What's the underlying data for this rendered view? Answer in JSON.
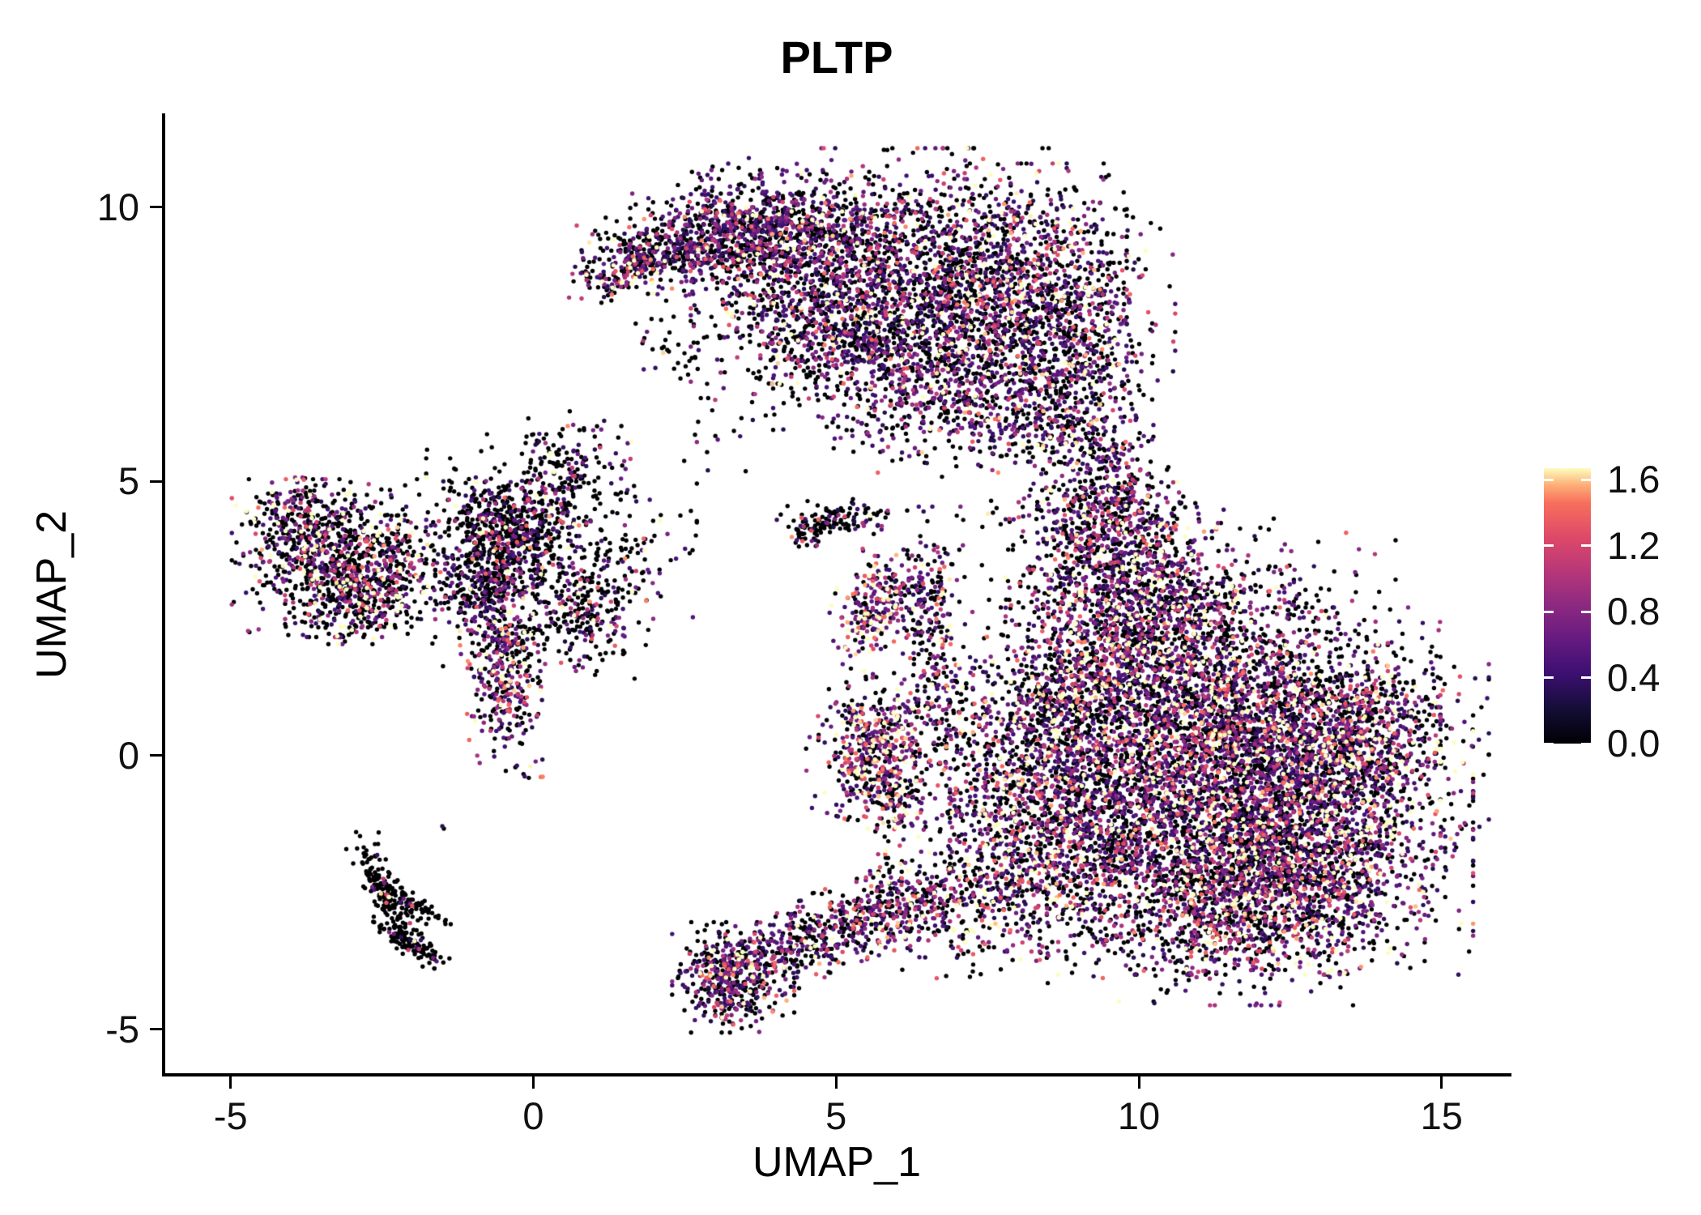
{
  "title": "PLTP",
  "axes": {
    "x": {
      "label": "UMAP_1",
      "ticks": [
        -5,
        0,
        5,
        10,
        15
      ]
    },
    "y": {
      "label": "UMAP_2",
      "ticks": [
        10,
        5,
        0,
        -5
      ]
    }
  },
  "legend": {
    "ticks": [
      "1.6",
      "1.2",
      "0.8",
      "0.4",
      "0.0"
    ],
    "min": 0.0,
    "max": 1.6
  },
  "chart_data": {
    "type": "scatter",
    "title": "PLTP",
    "xlabel": "UMAP_1",
    "ylabel": "UMAP_2",
    "xlim": [
      -6.08,
      16.1
    ],
    "ylim": [
      -5.8,
      11.67
    ],
    "grid": false,
    "legend_position": "right",
    "color_scale": {
      "name": "magma",
      "domain": [
        0.0,
        1.6
      ],
      "stops": [
        [
          0.0,
          "#000004"
        ],
        [
          0.125,
          "#140e36"
        ],
        [
          0.25,
          "#3b0f70"
        ],
        [
          0.375,
          "#641a80"
        ],
        [
          0.5,
          "#8c2981"
        ],
        [
          0.625,
          "#b73779"
        ],
        [
          0.75,
          "#de4968"
        ],
        [
          0.875,
          "#f7705c"
        ],
        [
          0.94,
          "#feb078"
        ],
        [
          1.0,
          "#fcfdbf"
        ]
      ]
    },
    "seed": 7,
    "point_radius": 2.7,
    "n_points_approx": 22400,
    "clusters": [
      {
        "name": "top-crescent",
        "expr": {
          "p0": 0.48,
          "base": 0.25,
          "mean": 0.5
        },
        "blobs": [
          {
            "cx": 1.55,
            "cy": 8.85,
            "rx": 0.45,
            "ry": 0.18,
            "rot": 25,
            "n": 160
          },
          {
            "cx": 2.6,
            "cy": 9.35,
            "rx": 0.75,
            "ry": 0.35,
            "rot": 10,
            "n": 450
          },
          {
            "cx": 4.0,
            "cy": 9.6,
            "rx": 1.0,
            "ry": 0.45,
            "rot": 0,
            "n": 800
          },
          {
            "cx": 4.4,
            "cy": 8.1,
            "rx": 0.9,
            "ry": 0.55,
            "rot": 0,
            "n": 300
          },
          {
            "cx": 6.2,
            "cy": 8.8,
            "rx": 1.5,
            "ry": 0.95,
            "rot": 0,
            "n": 1700
          },
          {
            "cx": 8.2,
            "cy": 8.4,
            "rx": 1.0,
            "ry": 1.0,
            "rot": 0,
            "n": 900
          },
          {
            "cx": 6.6,
            "cy": 6.9,
            "rx": 1.1,
            "ry": 0.6,
            "rot": 0,
            "n": 600
          },
          {
            "cx": 8.9,
            "cy": 6.9,
            "rx": 0.55,
            "ry": 0.95,
            "rot": 0,
            "n": 380
          },
          {
            "cx": 7.6,
            "cy": 6.0,
            "rx": 1.1,
            "ry": 0.35,
            "rot": 0,
            "n": 180
          },
          {
            "cx": 5.2,
            "cy": 7.6,
            "rx": 0.7,
            "ry": 0.5,
            "rot": 0,
            "n": 200
          }
        ]
      },
      {
        "name": "right-connector",
        "expr": {
          "p0": 0.5,
          "base": 0.25,
          "mean": 0.5
        },
        "blobs": [
          {
            "cx": 9.35,
            "cy": 5.0,
            "rx": 0.4,
            "ry": 0.85,
            "rot": 0,
            "n": 260
          },
          {
            "cx": 9.0,
            "cy": 4.2,
            "rx": 0.6,
            "ry": 0.5,
            "rot": 0,
            "n": 120
          }
        ]
      },
      {
        "name": "right-main",
        "expr": {
          "p0": 0.45,
          "base": 0.25,
          "mean": 0.6
        },
        "blobs": [
          {
            "cx": 9.6,
            "cy": 3.2,
            "rx": 0.75,
            "ry": 0.9,
            "rot": 0,
            "n": 700
          },
          {
            "cx": 10.4,
            "cy": 2.2,
            "rx": 0.9,
            "ry": 0.85,
            "rot": 0,
            "n": 800
          },
          {
            "cx": 11.6,
            "cy": 2.4,
            "rx": 1.1,
            "ry": 0.8,
            "rot": 0,
            "n": 300
          },
          {
            "cx": 10.9,
            "cy": 0.3,
            "rx": 1.7,
            "ry": 1.0,
            "rot": 0,
            "n": 2300
          },
          {
            "cx": 12.9,
            "cy": 0.4,
            "rx": 1.2,
            "ry": 0.85,
            "rot": 0,
            "n": 1000
          },
          {
            "cx": 11.2,
            "cy": -1.6,
            "rx": 1.8,
            "ry": 1.0,
            "rot": 0,
            "n": 2300
          },
          {
            "cx": 12.9,
            "cy": -1.6,
            "rx": 0.9,
            "ry": 0.8,
            "rot": 0,
            "n": 700
          },
          {
            "cx": 11.6,
            "cy": -3.0,
            "rx": 1.3,
            "ry": 0.65,
            "rot": 0,
            "n": 800
          },
          {
            "cx": 8.7,
            "cy": 0.9,
            "rx": 0.6,
            "ry": 0.9,
            "rot": 0,
            "n": 450
          },
          {
            "cx": 8.6,
            "cy": -1.3,
            "rx": 0.85,
            "ry": 0.95,
            "rot": 0,
            "n": 600
          },
          {
            "cx": 7.4,
            "cy": -2.5,
            "rx": 0.85,
            "ry": 0.6,
            "rot": 15,
            "n": 380
          },
          {
            "cx": 7.4,
            "cy": 0.2,
            "rx": 0.7,
            "ry": 1.1,
            "rot": 0,
            "n": 220
          },
          {
            "cx": 9.9,
            "cy": 4.35,
            "rx": 0.5,
            "ry": 0.45,
            "rot": 0,
            "n": 150
          },
          {
            "cx": 14.0,
            "cy": 0.5,
            "rx": 0.45,
            "ry": 0.55,
            "rot": 0,
            "n": 200
          }
        ]
      },
      {
        "name": "thin-streaks",
        "expr": {
          "p0": 0.5,
          "base": 0.25,
          "mean": 0.55
        },
        "blobs": [
          {
            "cx": 6.6,
            "cy": 1.9,
            "rx": 0.22,
            "ry": 1.1,
            "rot": 0,
            "n": 230
          },
          {
            "cx": 6.15,
            "cy": 2.9,
            "rx": 0.3,
            "ry": 0.35,
            "rot": 0,
            "n": 90
          }
        ]
      },
      {
        "name": "mid-small",
        "expr": {
          "p0": 0.3,
          "base": 0.3,
          "mean": 0.65
        },
        "blobs": [
          {
            "cx": 5.6,
            "cy": 2.65,
            "rx": 0.28,
            "ry": 0.5,
            "rot": -15,
            "n": 200
          }
        ]
      },
      {
        "name": "mid-tiny",
        "expr": {
          "p0": 0.75,
          "base": 0.25,
          "mean": 0.5
        },
        "blobs": [
          {
            "cx": 5.1,
            "cy": 4.35,
            "rx": 0.45,
            "ry": 0.16,
            "rot": 5,
            "n": 110
          },
          {
            "cx": 4.45,
            "cy": 4.05,
            "rx": 0.18,
            "ry": 0.12,
            "rot": 0,
            "n": 35
          }
        ]
      },
      {
        "name": "mid-blob",
        "expr": {
          "p0": 0.35,
          "base": 0.3,
          "mean": 0.65
        },
        "blobs": [
          {
            "cx": 5.55,
            "cy": 0.1,
            "rx": 0.42,
            "ry": 0.55,
            "rot": -20,
            "n": 480
          },
          {
            "cx": 5.95,
            "cy": -0.9,
            "rx": 0.25,
            "ry": 0.45,
            "rot": 0,
            "n": 110
          }
        ]
      },
      {
        "name": "bottom-mid",
        "expr": {
          "p0": 0.45,
          "base": 0.25,
          "mean": 0.55
        },
        "blobs": [
          {
            "cx": 3.3,
            "cy": -4.05,
            "rx": 0.42,
            "ry": 0.42,
            "rot": 0,
            "n": 450
          },
          {
            "cx": 4.5,
            "cy": -3.4,
            "rx": 0.9,
            "ry": 0.3,
            "rot": 25,
            "n": 350
          },
          {
            "cx": 5.8,
            "cy": -2.85,
            "rx": 0.7,
            "ry": 0.3,
            "rot": 20,
            "n": 250
          }
        ]
      },
      {
        "name": "center-left",
        "expr": {
          "p0": 0.68,
          "base": 0.25,
          "mean": 0.5
        },
        "blobs": [
          {
            "cx": -0.45,
            "cy": 4.1,
            "rx": 0.55,
            "ry": 0.55,
            "rot": 0,
            "n": 550
          },
          {
            "cx": 0.3,
            "cy": 3.7,
            "rx": 1.0,
            "ry": 0.9,
            "rot": 0,
            "n": 450
          },
          {
            "cx": 0.9,
            "cy": 2.6,
            "rx": 0.45,
            "ry": 0.5,
            "rot": 0,
            "n": 200
          },
          {
            "cx": 0.5,
            "cy": 5.2,
            "rx": 0.5,
            "ry": 0.45,
            "rot": 0,
            "n": 130
          },
          {
            "cx": -0.9,
            "cy": 3.0,
            "rx": 0.35,
            "ry": 0.4,
            "rot": 0,
            "n": 150
          }
        ]
      },
      {
        "name": "center-left-arm",
        "expr": {
          "p0": 0.4,
          "base": 0.28,
          "mean": 0.6
        },
        "blobs": [
          {
            "cx": -0.5,
            "cy": 1.6,
            "rx": 0.28,
            "ry": 0.85,
            "rot": 5,
            "n": 400
          }
        ]
      },
      {
        "name": "left",
        "expr": {
          "p0": 0.58,
          "base": 0.3,
          "mean": 0.7
        },
        "blobs": [
          {
            "cx": -3.3,
            "cy": 3.6,
            "rx": 0.7,
            "ry": 0.6,
            "rot": 0,
            "n": 750
          },
          {
            "cx": -3.9,
            "cy": 4.35,
            "rx": 0.35,
            "ry": 0.3,
            "rot": 0,
            "n": 160
          },
          {
            "cx": -2.9,
            "cy": 2.75,
            "rx": 0.5,
            "ry": 0.3,
            "rot": 0,
            "n": 180
          },
          {
            "cx": -2.45,
            "cy": 3.3,
            "rx": 0.3,
            "ry": 0.45,
            "rot": 0,
            "n": 120
          }
        ]
      },
      {
        "name": "v-shape",
        "expr": {
          "p0": 0.93,
          "base": 0.25,
          "mean": 0.5
        },
        "blobs": [
          {
            "cx": -2.45,
            "cy": -2.5,
            "rx": 0.13,
            "ry": 0.5,
            "rot": 22,
            "n": 170
          },
          {
            "cx": -2.05,
            "cy": -3.4,
            "rx": 0.35,
            "ry": 0.1,
            "rot": -37,
            "n": 120
          },
          {
            "cx": -1.95,
            "cy": -2.75,
            "rx": 0.28,
            "ry": 0.08,
            "rot": -30,
            "n": 60
          }
        ]
      },
      {
        "name": "stray-dots",
        "expr": {
          "p0": 0.2,
          "base": 0.3,
          "mean": 0.6
        },
        "blobs": [
          {
            "cx": -1.55,
            "cy": -1.35,
            "rx": 0.06,
            "ry": 0.06,
            "rot": 0,
            "n": 2
          }
        ]
      },
      {
        "name": "sparse-singles",
        "expr": {
          "p0": 0.7,
          "base": 0.25,
          "mean": 0.5
        },
        "blobs": [
          {
            "cx": 3.1,
            "cy": 6.3,
            "rx": 0.5,
            "ry": 0.5,
            "rot": 0,
            "n": 25
          },
          {
            "cx": 2.2,
            "cy": 7.5,
            "rx": 0.4,
            "ry": 0.4,
            "rot": 0,
            "n": 30
          },
          {
            "cx": 7.2,
            "cy": 3.9,
            "rx": 0.6,
            "ry": 0.6,
            "rot": 0,
            "n": 18
          }
        ]
      }
    ]
  }
}
